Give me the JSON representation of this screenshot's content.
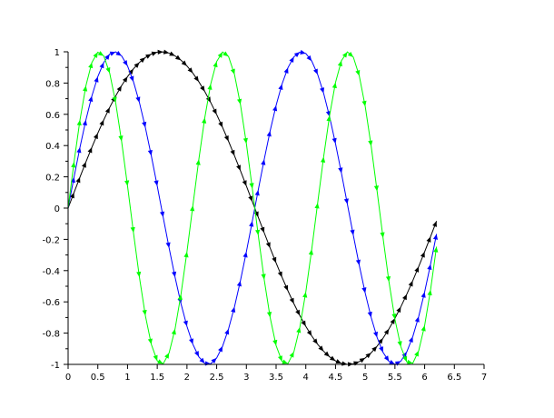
{
  "chart_data": {
    "type": "line",
    "title": "",
    "xlabel": "",
    "ylabel": "",
    "xlim": [
      0,
      7
    ],
    "ylim": [
      -1,
      1
    ],
    "grid": false,
    "legend": null,
    "x_ticks": [
      "0",
      "0.5",
      "1",
      "1.5",
      "2",
      "2.5",
      "3",
      "3.5",
      "4",
      "4.5",
      "5",
      "5.5",
      "6",
      "6.5",
      "7"
    ],
    "y_ticks": [
      "-1",
      "-0.8",
      "-0.6",
      "-0.4",
      "-0.2",
      "0",
      "0.2",
      "0.4",
      "0.6",
      "0.8",
      "1"
    ],
    "x": {
      "start": 0,
      "stop": 6.2,
      "step": 0.1
    },
    "marker": "arrowhead",
    "series": [
      {
        "expression": "sin(x)",
        "color": "#000000"
      },
      {
        "expression": "sin(2x)",
        "color": "#0000ff"
      },
      {
        "expression": "sin(3x)",
        "color": "#00ff00"
      }
    ]
  }
}
